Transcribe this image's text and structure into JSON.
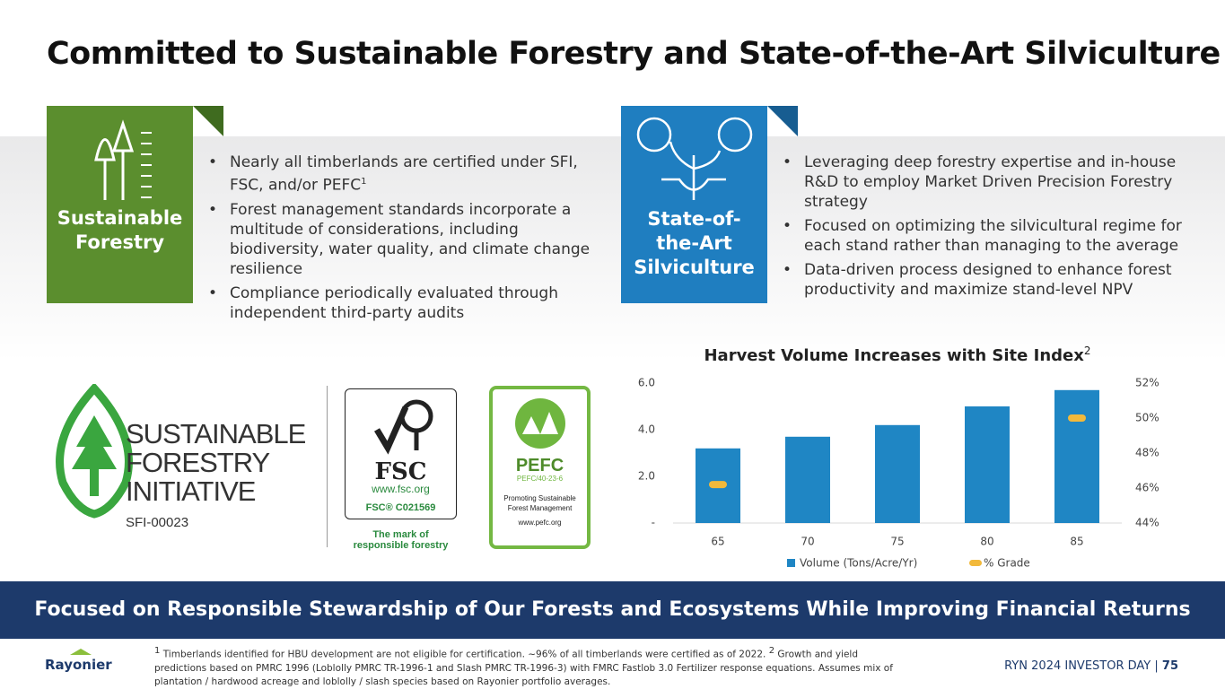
{
  "title": "Committed to Sustainable Forestry and State-of-the-Art Silviculture",
  "panels": [
    {
      "label": [
        "Sustainable",
        "Forestry"
      ],
      "bullets": [
        {
          "text": "Nearly all timberlands are certified under SFI, FSC, and/or PEFC",
          "sup": "1"
        },
        {
          "text": "Forest management standards incorporate a multitude of considerations, including biodiversity, water quality, and climate change resilience"
        },
        {
          "text": "Compliance periodically evaluated through independent third-party audits"
        }
      ]
    },
    {
      "label": [
        "State-of-",
        "the-Art",
        "Silviculture"
      ],
      "bullets": [
        {
          "text": "Leveraging deep forestry expertise and in-house R&D to employ Market Driven Precision Forestry strategy"
        },
        {
          "text": "Focused on optimizing the silvicultural regime for each stand rather than managing to the average"
        },
        {
          "text": "Data-driven process designed to enhance forest productivity and maximize stand-level NPV"
        }
      ]
    }
  ],
  "logos": {
    "sfi": {
      "lines": [
        "SUSTAINABLE",
        "FORESTRY",
        "INITIATIVE"
      ],
      "code": "SFI-00023"
    },
    "fsc": {
      "name": "FSC",
      "url": "www.fsc.org",
      "code": "FSC® C021569",
      "tagline": [
        "The mark of",
        "responsible forestry"
      ]
    },
    "pefc": {
      "name": "PEFC",
      "code": "PEFC/40-23-6",
      "tagline": [
        "Promoting Sustainable",
        "Forest Management"
      ],
      "url": "www.pefc.org"
    }
  },
  "chart_data": {
    "type": "bar",
    "title": "Harvest Volume Increases with Site Index",
    "title_sup": "2",
    "categories": [
      "65",
      "70",
      "75",
      "80",
      "85"
    ],
    "series": [
      {
        "name": "Volume (Tons/Acre/Yr)",
        "color": "#1f86c4",
        "values": [
          3.2,
          3.7,
          4.2,
          5.0,
          5.7
        ]
      },
      {
        "name": "% Grade",
        "color": "#f2b93b",
        "axis": "y2",
        "values": [
          46.2,
          null,
          null,
          null,
          50.0
        ]
      }
    ],
    "ylim": [
      0,
      6
    ],
    "yticks": [
      {
        "value": 0,
        "label": "-"
      },
      {
        "value": 2,
        "label": "2.0"
      },
      {
        "value": 4,
        "label": "4.0"
      },
      {
        "value": 6,
        "label": "6.0"
      }
    ],
    "y2lim": [
      44,
      52
    ],
    "y2ticks": [
      {
        "value": 44,
        "label": "44%"
      },
      {
        "value": 46,
        "label": "46%"
      },
      {
        "value": 48,
        "label": "48%"
      },
      {
        "value": 50,
        "label": "50%"
      },
      {
        "value": 52,
        "label": "52%"
      }
    ],
    "legend": "bottom"
  },
  "banner": "Focused on Responsible Stewardship of Our Forests and Ecosystems While Improving Financial Returns",
  "footnotes": [
    {
      "sup": "1",
      "text": "Timberlands identified for HBU development are not eligible for certification. ~96% of all timberlands were certified as of 2022."
    },
    {
      "sup": "2",
      "text": "Growth and yield predictions based on PMRC 1996 (Loblolly PMRC TR-1996-1 and Slash PMRC TR-1996-3) with FMRC Fastlob 3.0 Fertilizer response equations. Assumes mix of plantation / hardwood acreage and loblolly / slash species based on Rayonier portfolio averages."
    }
  ],
  "footer": {
    "company": "Rayonier",
    "event": "RYN 2024 INVESTOR DAY",
    "separator": "|",
    "page": "75"
  }
}
